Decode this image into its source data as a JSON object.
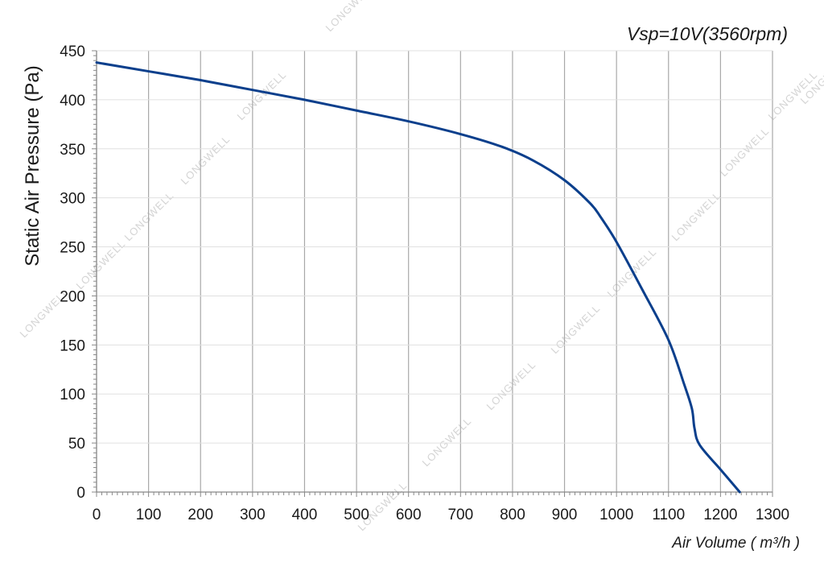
{
  "chart_data": {
    "type": "line",
    "annotation": "Vsp=10V(3560rpm)",
    "xlabel": "Air Volume ( m³/h )",
    "ylabel": "Static Air Pressure  (Pa)",
    "xlim": [
      0,
      1300
    ],
    "ylim": [
      0,
      450
    ],
    "x_ticks": [
      "0",
      "100",
      "200",
      "300",
      "400",
      "500",
      "600",
      "700",
      "800",
      "900",
      "1000",
      "1100",
      "1200",
      "1300"
    ],
    "y_ticks": [
      "0",
      "50",
      "100",
      "150",
      "200",
      "250",
      "300",
      "350",
      "400",
      "450"
    ],
    "grid": true,
    "line_color": "#0b3f8c",
    "watermark": "LONGWELL",
    "series": [
      {
        "x": [
          0,
          100,
          200,
          300,
          400,
          500,
          600,
          700,
          780,
          840,
          900,
          950,
          970,
          1000,
          1050,
          1100,
          1130,
          1145,
          1150,
          1160,
          1200,
          1237
        ],
        "y": [
          438,
          429,
          420,
          410,
          400,
          389,
          378,
          365,
          352,
          338,
          318,
          294,
          280,
          255,
          206,
          155,
          110,
          85,
          65,
          48,
          23,
          0
        ]
      }
    ]
  }
}
